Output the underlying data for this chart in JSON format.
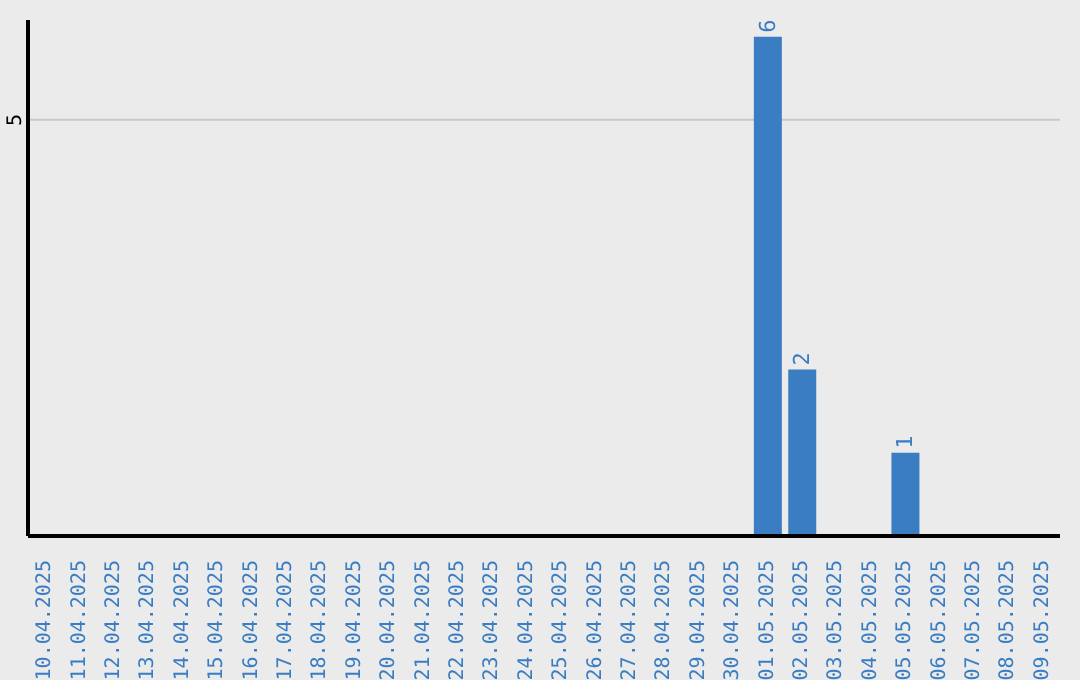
{
  "chart_data": {
    "type": "bar",
    "categories": [
      "10.04.2025",
      "11.04.2025",
      "12.04.2025",
      "13.04.2025",
      "14.04.2025",
      "15.04.2025",
      "16.04.2025",
      "17.04.2025",
      "18.04.2025",
      "19.04.2025",
      "20.04.2025",
      "21.04.2025",
      "22.04.2025",
      "23.04.2025",
      "24.04.2025",
      "25.04.2025",
      "26.04.2025",
      "27.04.2025",
      "28.04.2025",
      "29.04.2025",
      "30.04.2025",
      "01.05.2025",
      "02.05.2025",
      "03.05.2025",
      "04.05.2025",
      "05.05.2025",
      "06.05.2025",
      "07.05.2025",
      "08.05.2025",
      "09.05.2025"
    ],
    "values": [
      null,
      null,
      null,
      null,
      null,
      null,
      null,
      null,
      null,
      null,
      null,
      null,
      null,
      null,
      null,
      null,
      null,
      null,
      null,
      null,
      null,
      6,
      2,
      null,
      null,
      1,
      null,
      null,
      null,
      null
    ],
    "color": "#3a7dc2",
    "ylim": [
      0,
      6.2
    ],
    "yticks": [
      5
    ],
    "grid": "y",
    "data_labels": true
  }
}
